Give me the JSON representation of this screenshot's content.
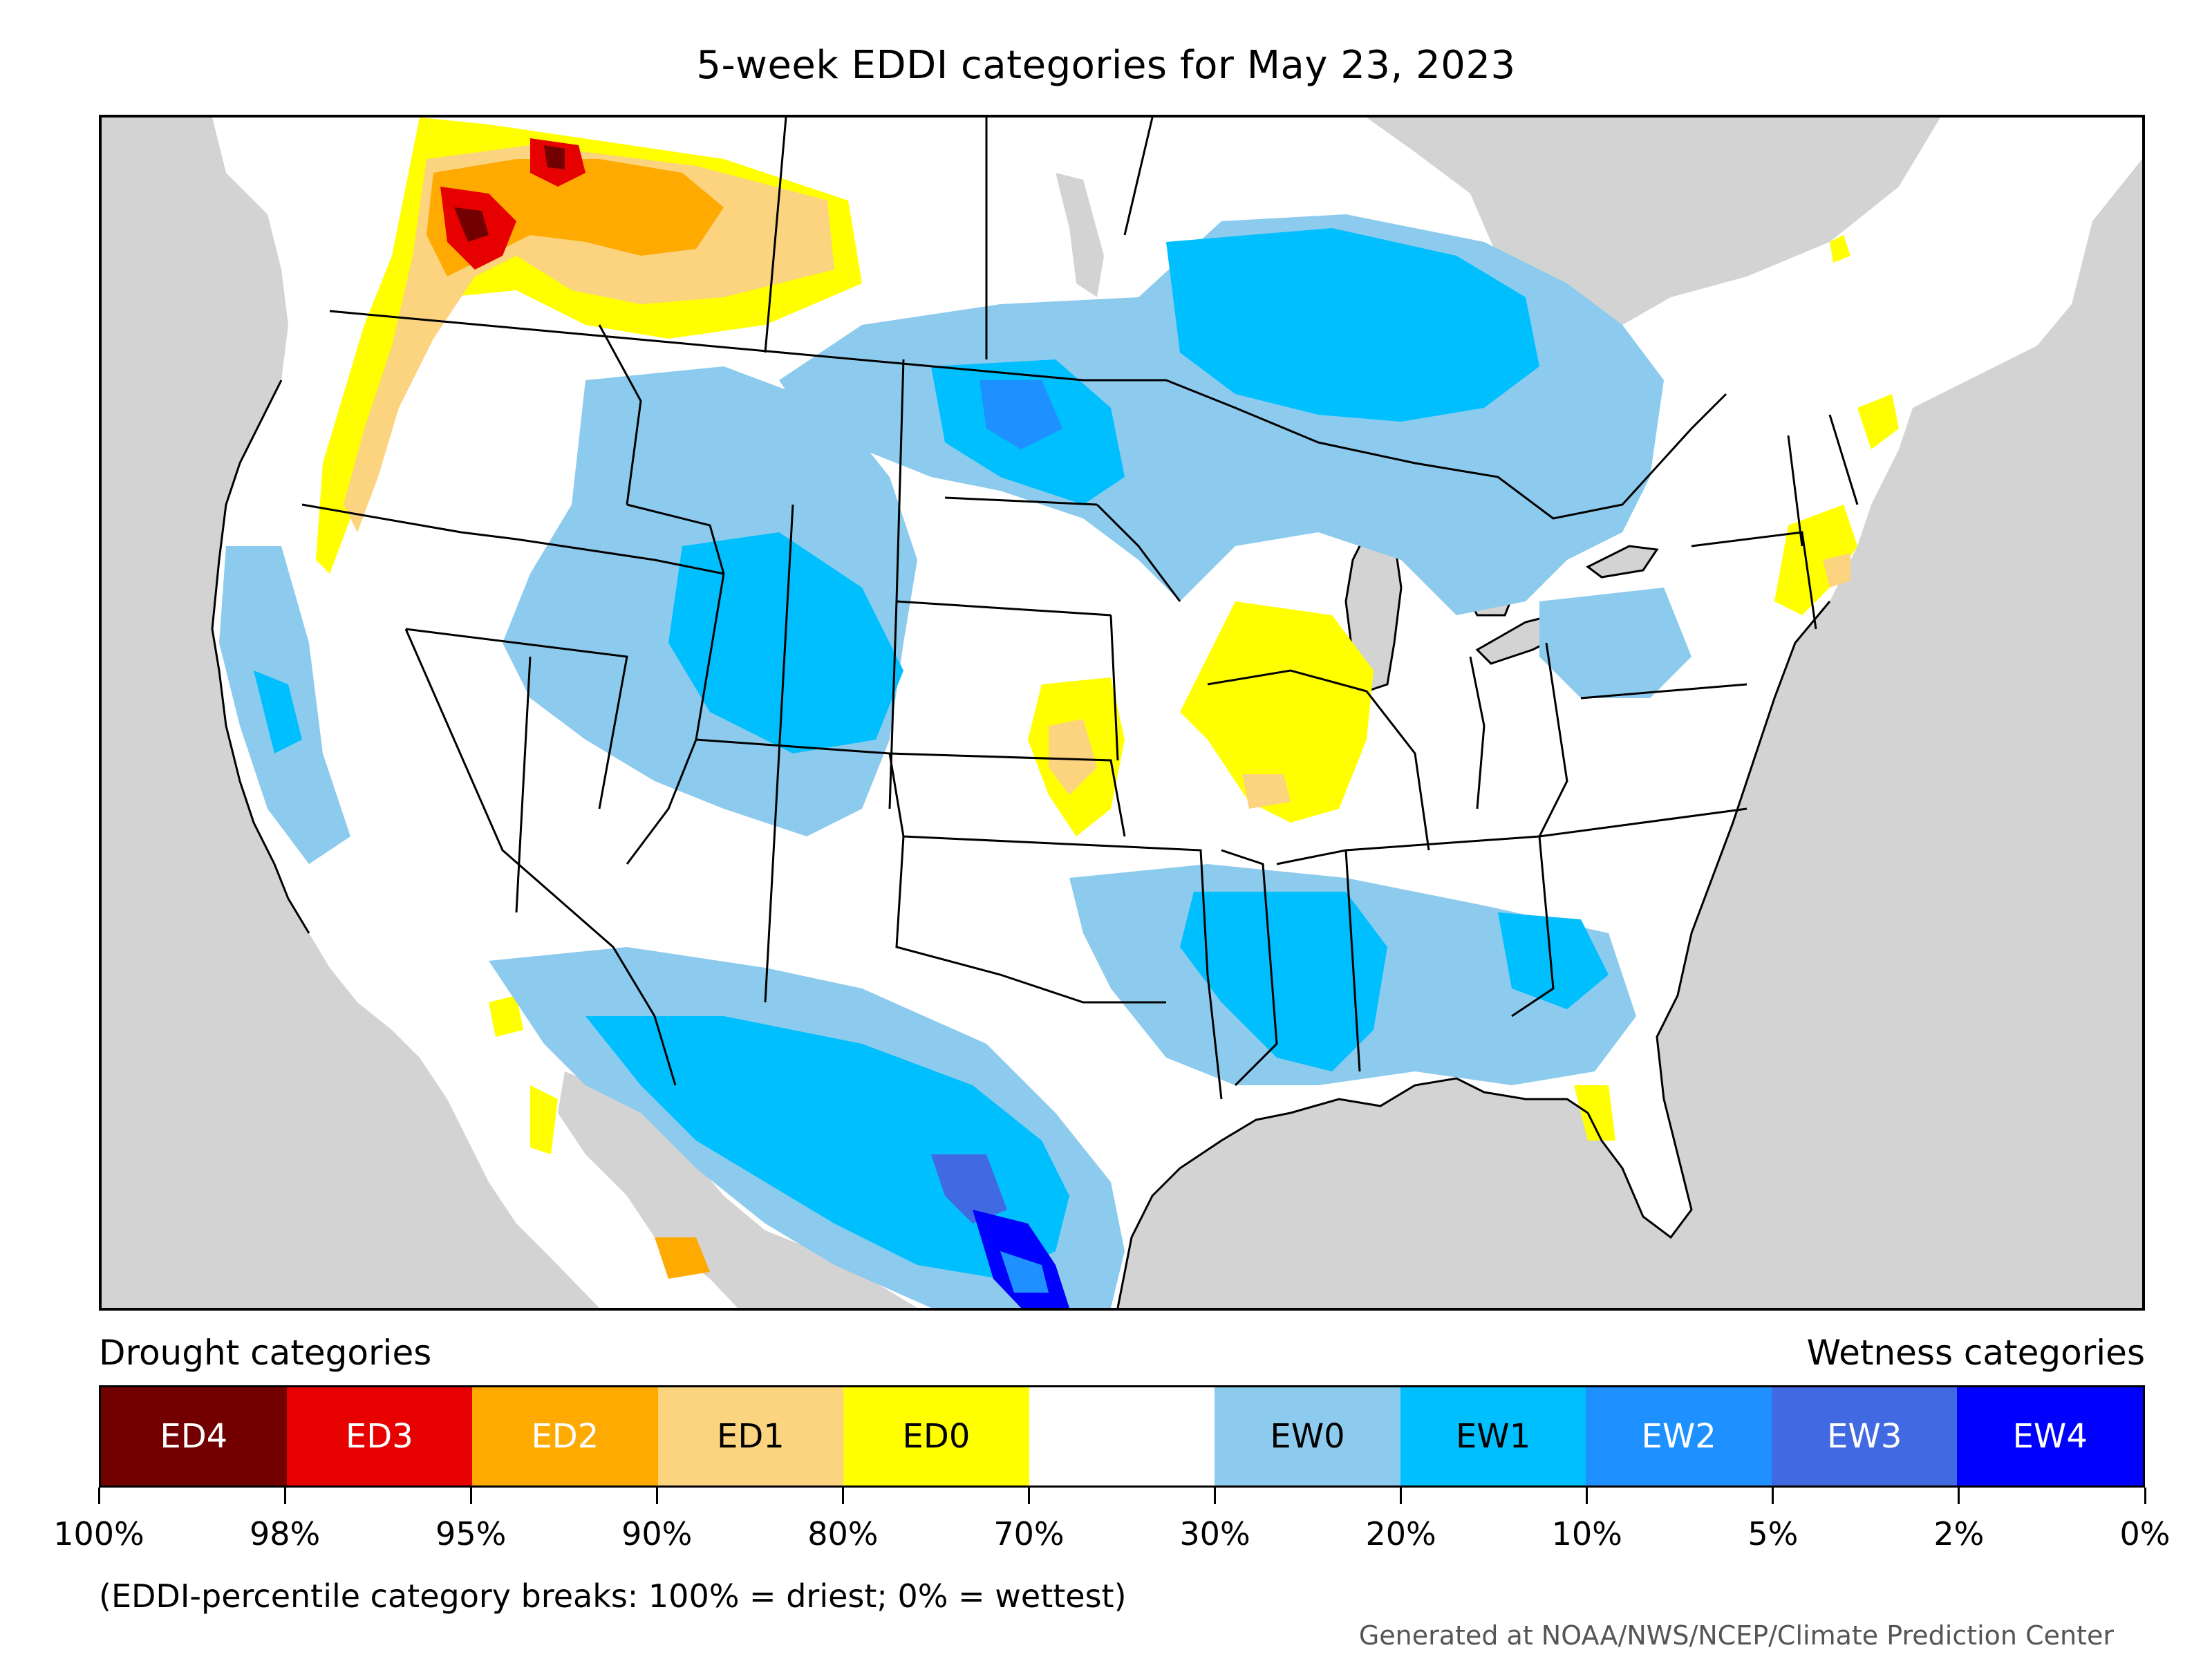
{
  "title": "5-week EDDI categories for May 23, 2023",
  "legend": {
    "drought_label": "Drought categories",
    "wetness_label": "Wetness categories",
    "bins": [
      {
        "label": "ED4",
        "color": "#730000",
        "text_color": "#ffffff"
      },
      {
        "label": "ED3",
        "color": "#e60000",
        "text_color": "#ffffff"
      },
      {
        "label": "ED2",
        "color": "#ffaa00",
        "text_color": "#ffffff"
      },
      {
        "label": "ED1",
        "color": "#fcd37f",
        "text_color": "#000000"
      },
      {
        "label": "ED0",
        "color": "#ffff00",
        "text_color": "#000000"
      },
      {
        "label": "",
        "color": "#ffffff",
        "text_color": "#000000"
      },
      {
        "label": "EW0",
        "color": "#8ccbed",
        "text_color": "#000000"
      },
      {
        "label": "EW1",
        "color": "#00bfff",
        "text_color": "#000000"
      },
      {
        "label": "EW2",
        "color": "#1e90ff",
        "text_color": "#ffffff"
      },
      {
        "label": "EW3",
        "color": "#4169e1",
        "text_color": "#ffffff"
      },
      {
        "label": "EW4",
        "color": "#0000ff",
        "text_color": "#ffffff"
      }
    ],
    "ticks": [
      "100%",
      "98%",
      "95%",
      "90%",
      "80%",
      "70%",
      "30%",
      "20%",
      "10%",
      "5%",
      "2%",
      "0%"
    ]
  },
  "note": "(EDDI-percentile category breaks: 100% = driest; 0% = wettest)",
  "credit": "Generated at NOAA/NWS/NCEP/Climate Prediction Center",
  "map": {
    "ocean_color": "#d3d3d3",
    "land_color": "#ffffff",
    "regions": [
      {
        "category": "ED1",
        "area": "Pacific Northwest / southern British Columbia"
      },
      {
        "category": "ED2",
        "area": "Cascades / northern Rockies Canada"
      },
      {
        "category": "ED3",
        "area": "Washington Cascades"
      },
      {
        "category": "ED4",
        "area": "British Columbia interior"
      },
      {
        "category": "ED0",
        "area": "Oregon coast and Idaho panhandle"
      },
      {
        "category": "ED0",
        "area": "Kansas"
      },
      {
        "category": "ED1",
        "area": "Kansas core"
      },
      {
        "category": "ED0",
        "area": "Iowa / Missouri / Illinois"
      },
      {
        "category": "ED1",
        "area": "Missouri core"
      },
      {
        "category": "ED0",
        "area": "Southern New England"
      },
      {
        "category": "ED0",
        "area": "Florida peninsula"
      },
      {
        "category": "EW0",
        "area": "Canadian Prairies to Great Lakes"
      },
      {
        "category": "EW1",
        "area": "Ontario and Dakotas"
      },
      {
        "category": "EW2",
        "area": "North Dakota"
      },
      {
        "category": "EW0",
        "area": "Intermountain West and Rockies"
      },
      {
        "category": "EW1",
        "area": "Colorado and Utah"
      },
      {
        "category": "EW0",
        "area": "Southwest / northern Mexico"
      },
      {
        "category": "EW1",
        "area": "South Texas and Coahuila"
      },
      {
        "category": "EW3",
        "area": "Lower Rio Grande"
      },
      {
        "category": "EW4",
        "area": "Texas Gulf coast"
      },
      {
        "category": "EW1",
        "area": "Lower Mississippi Valley"
      },
      {
        "category": "EW0",
        "area": "Southeast US"
      },
      {
        "category": "EW0",
        "area": "Ohio Valley / Pennsylvania"
      },
      {
        "category": "EW0",
        "area": "California coast"
      }
    ]
  }
}
